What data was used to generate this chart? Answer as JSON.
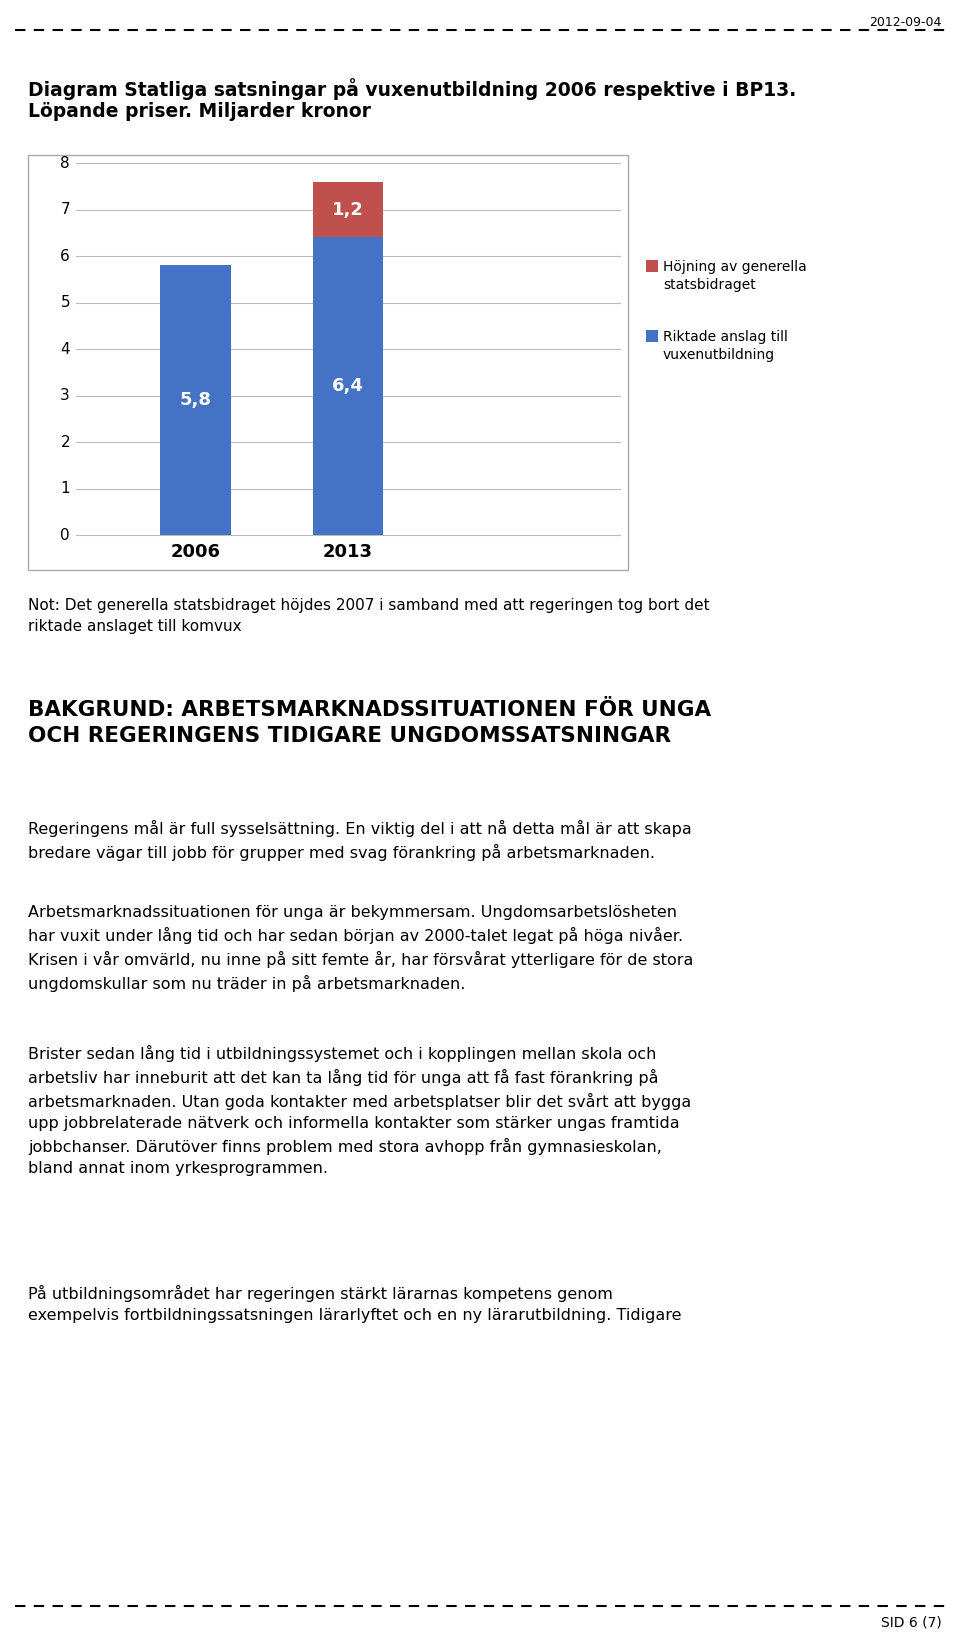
{
  "date_text": "2012-09-04",
  "chart_title_line1": "Diagram Statliga satsningar på vuxenutbildning 2006 respektive i BP13.",
  "chart_title_line2": "Löpande priser. Miljarder kronor",
  "categories": [
    "2006",
    "2013"
  ],
  "bar_blue": [
    5.8,
    6.4
  ],
  "bar_red": [
    0.0,
    1.2
  ],
  "bar_blue_color": "#4472C4",
  "bar_red_color": "#C0504D",
  "bar_labels_blue": [
    "5,8",
    "6,4"
  ],
  "bar_labels_red": [
    "",
    "1,2"
  ],
  "legend_blue": "Riktade anslag till\nvuxenutbildning",
  "legend_red": "Höjning av generella\nstatsbidraget",
  "ylim": [
    0,
    8
  ],
  "yticks": [
    0,
    1,
    2,
    3,
    4,
    5,
    6,
    7,
    8
  ],
  "note_text": "Not: Det generella statsbidraget höjdes 2007 i samband med att regeringen tog bort det\nriktade anslaget till komvux",
  "section_heading": "BAKGRUND: ARBETSMARKNADSSITUATIONEN FÖR UNGA\nOCH REGERINGENS TIDIGARE UNGDOMSSATSNINGAR",
  "para1": "Regeringens mål är full sysselsättning. En viktig del i att nå detta mål är att skapa\nbredare vägar till jobb för grupper med svag förankring på arbetsmarknaden.",
  "para2": "Arbetsmarknadssituationen för unga är bekymmersam. Ungdomsarbetslösheten\nhar vuxit under lång tid och har sedan början av 2000-talet legat på höga nivåer.\nKrisen i vår omvärld, nu inne på sitt femte år, har försvårat ytterligare för de stora\nungdomskullar som nu träder in på arbetsmarknaden.",
  "para3": "Brister sedan lång tid i utbildningssystemet och i kopplingen mellan skola och\narbetsliv har inneburit att det kan ta lång tid för unga att få fast förankring på\narbetsmarknaden. Utan goda kontakter med arbetsplatser blir det svårt att bygga\nupp jobbrelaterade nätverk och informella kontakter som stärker ungas framtida\njobbchanser. Därutöver finns problem med stora avhopp från gymnasieskolan,\nbland annat inom yrkesprogrammen.",
  "para4": "På utbildningsområdet har regeringen stärkt lärarnas kompetens genom\nexempelvis fortbildningssatsningen lärarlyftet och en ny lärarutbildning. Tidigare",
  "footer_text": "SID 6 (7)",
  "bg_color": "#FFFFFF",
  "text_color": "#000000"
}
